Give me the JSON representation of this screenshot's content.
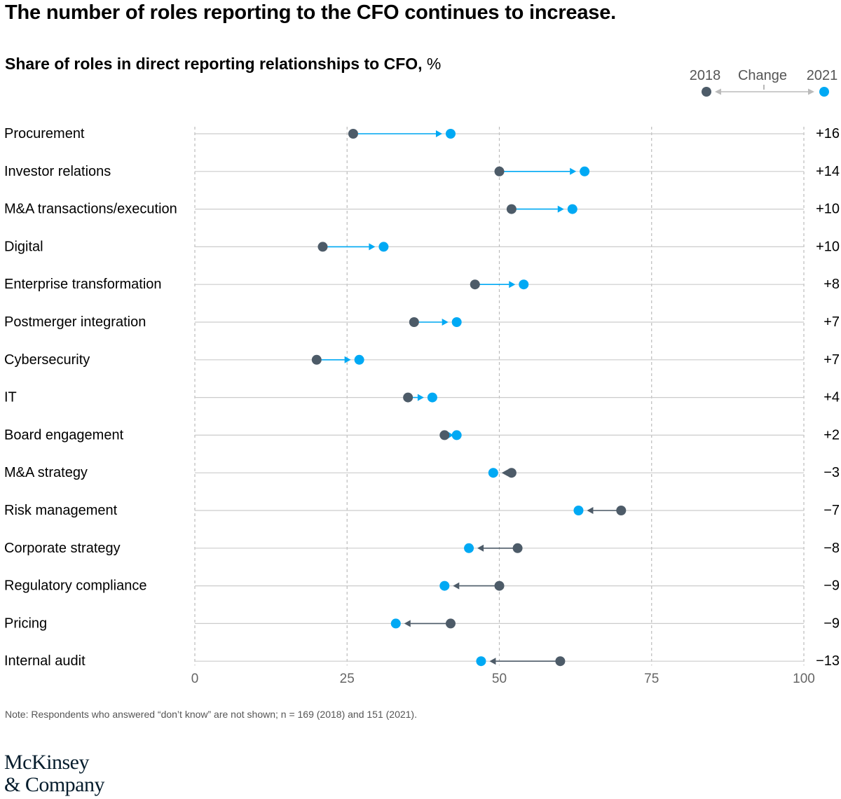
{
  "headline": "The number of roles reporting to the CFO continues to increase.",
  "subtitle_bold": "Share of roles in direct reporting relationships to CFO,",
  "subtitle_unit": " %",
  "legend": {
    "start": "2018",
    "change": "Change",
    "end": "2021"
  },
  "colors": {
    "y2018": "#4d5b68",
    "y2021": "#00a9f4",
    "grid": "#bbbbbb",
    "axis_text": "#666666"
  },
  "chart_data": {
    "type": "dumbbell",
    "x_range": [
      0,
      100
    ],
    "x_ticks": [
      "0",
      "25",
      "50",
      "75",
      "100"
    ],
    "series_names": [
      "2018",
      "2021"
    ],
    "grid": true,
    "legend_position": "top-right",
    "rows": [
      {
        "label": "Procurement",
        "v2018": 26,
        "v2021": 42,
        "change": "+16"
      },
      {
        "label": "Investor relations",
        "v2018": 50,
        "v2021": 64,
        "change": "+14"
      },
      {
        "label": "M&A transactions/execution",
        "v2018": 52,
        "v2021": 62,
        "change": "+10"
      },
      {
        "label": "Digital",
        "v2018": 21,
        "v2021": 31,
        "change": "+10"
      },
      {
        "label": "Enterprise transformation",
        "v2018": 46,
        "v2021": 54,
        "change": "+8"
      },
      {
        "label": "Postmerger integration",
        "v2018": 36,
        "v2021": 43,
        "change": "+7"
      },
      {
        "label": "Cybersecurity",
        "v2018": 20,
        "v2021": 27,
        "change": "+7"
      },
      {
        "label": "IT",
        "v2018": 35,
        "v2021": 39,
        "change": "+4"
      },
      {
        "label": "Board engagement",
        "v2018": 41,
        "v2021": 43,
        "change": "+2"
      },
      {
        "label": "M&A strategy",
        "v2018": 52,
        "v2021": 49,
        "change": "−3"
      },
      {
        "label": "Risk management",
        "v2018": 70,
        "v2021": 63,
        "change": "−7"
      },
      {
        "label": "Corporate strategy",
        "v2018": 53,
        "v2021": 45,
        "change": "−8"
      },
      {
        "label": "Regulatory compliance",
        "v2018": 50,
        "v2021": 41,
        "change": "−9"
      },
      {
        "label": "Pricing",
        "v2018": 42,
        "v2021": 33,
        "change": "−9"
      },
      {
        "label": "Internal audit",
        "v2018": 60,
        "v2021": 47,
        "change": "−13"
      }
    ]
  },
  "note": "Note: Respondents who answered “don’t know” are not shown; n = 169 (2018) and 151 (2021).",
  "logo": {
    "line1": "McKinsey",
    "line2": "& Company"
  }
}
